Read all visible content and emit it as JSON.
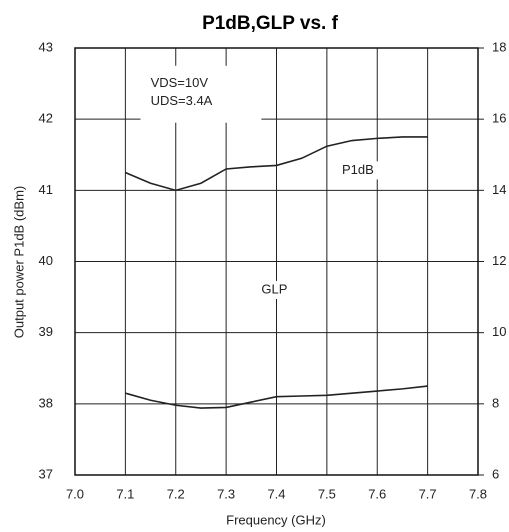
{
  "chart_data": {
    "type": "line",
    "title": "P1dB,GLP vs. f",
    "xlabel": "Frequency (GHz)",
    "ylabel": "Output power P1dB (dBm)",
    "x": [
      7.1,
      7.15,
      7.2,
      7.25,
      7.3,
      7.35,
      7.4,
      7.45,
      7.5,
      7.55,
      7.6,
      7.65,
      7.7
    ],
    "series": [
      {
        "name": "P1dB",
        "color": "#222222",
        "values": [
          41.25,
          41.1,
          41.0,
          41.1,
          41.3,
          41.33,
          41.35,
          41.45,
          41.62,
          41.7,
          41.73,
          41.75,
          41.75
        ]
      },
      {
        "name": "GLP",
        "color": "#222222",
        "axis": "y2",
        "values": [
          8.3,
          8.1,
          7.96,
          7.88,
          7.9,
          8.05,
          8.2,
          8.22,
          8.24,
          8.3,
          8.36,
          8.42,
          8.5
        ]
      }
    ],
    "xlim": [
      7.0,
      7.8
    ],
    "xticks": [
      {
        "value": 7,
        "label": "7.0"
      },
      7.1,
      7.2,
      7.3,
      7.4,
      7.5,
      7.6,
      7.7,
      7.8
    ],
    "ylim": [
      37,
      43
    ],
    "yticks": [
      37,
      38,
      39,
      40,
      41,
      42,
      43
    ],
    "y2lim": [
      6,
      18
    ],
    "y2ticks": [
      6,
      8,
      10,
      12,
      14,
      16,
      18
    ],
    "grid": true,
    "annotations": [
      "VDS=10V",
      "UDS=3.4A"
    ]
  }
}
